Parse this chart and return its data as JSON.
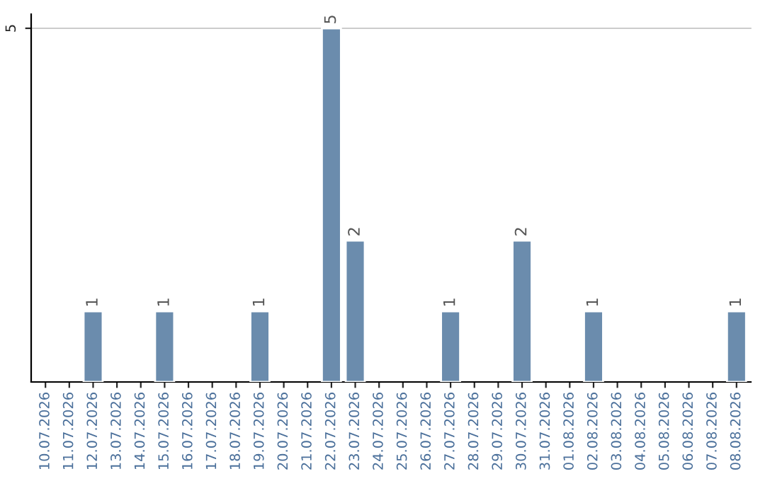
{
  "chart_data": {
    "type": "bar",
    "categories": [
      "10.07.2026",
      "11.07.2026",
      "12.07.2026",
      "13.07.2026",
      "14.07.2026",
      "15.07.2026",
      "16.07.2026",
      "17.07.2026",
      "18.07.2026",
      "19.07.2026",
      "20.07.2026",
      "21.07.2026",
      "22.07.2026",
      "23.07.2026",
      "24.07.2026",
      "25.07.2026",
      "26.07.2026",
      "27.07.2026",
      "28.07.2026",
      "29.07.2026",
      "30.07.2026",
      "31.07.2026",
      "01.08.2026",
      "02.08.2026",
      "03.08.2026",
      "04.08.2026",
      "05.08.2026",
      "06.08.2026",
      "07.08.2026",
      "08.08.2026"
    ],
    "values": [
      null,
      null,
      1,
      null,
      null,
      1,
      null,
      null,
      null,
      1,
      null,
      null,
      5,
      2,
      null,
      null,
      null,
      1,
      null,
      null,
      2,
      null,
      null,
      1,
      null,
      null,
      null,
      null,
      null,
      1
    ],
    "value_labels": [
      null,
      null,
      "1",
      null,
      null,
      "1",
      null,
      null,
      null,
      "1",
      null,
      null,
      "5",
      "2",
      null,
      null,
      null,
      "1",
      null,
      null,
      "2",
      null,
      null,
      "1",
      null,
      null,
      null,
      null,
      null,
      "1"
    ],
    "color": "#6b8cad",
    "ylim": [
      0,
      5.2
    ],
    "yticks": [
      5
    ],
    "grid": "y",
    "legend": false
  }
}
